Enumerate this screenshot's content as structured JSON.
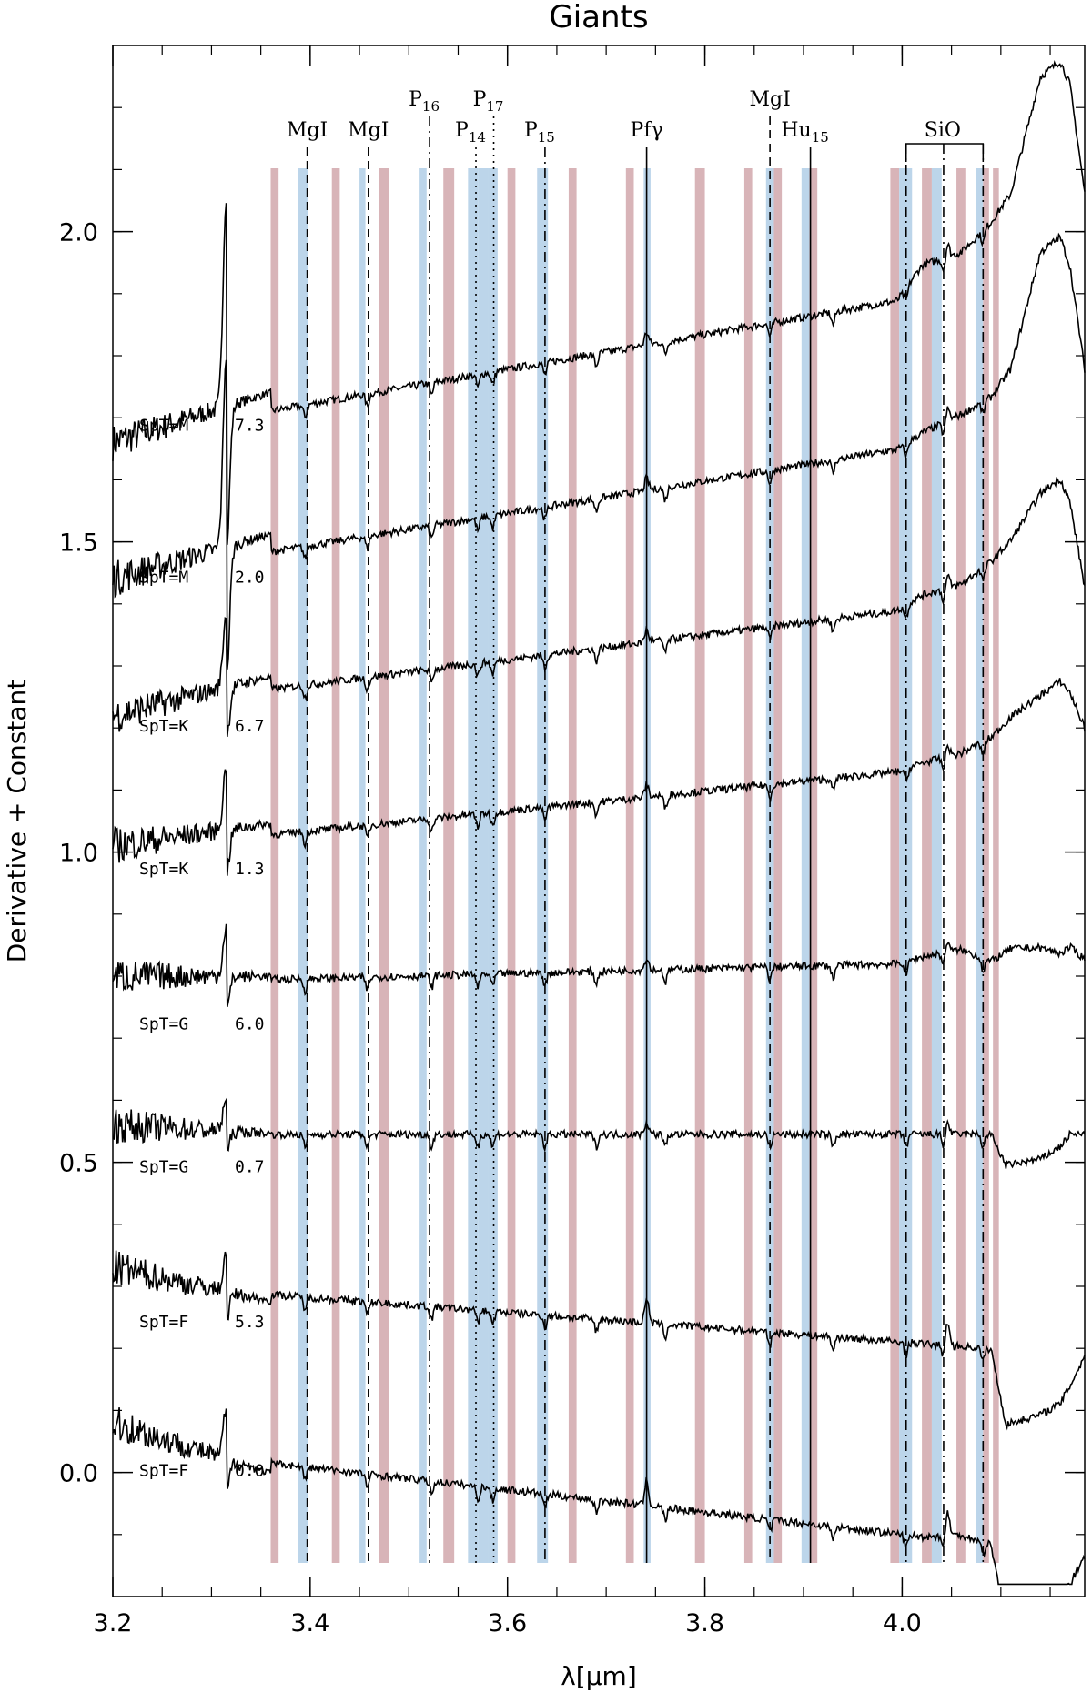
{
  "chart_data": {
    "type": "line",
    "title": "Giants",
    "xlabel": "λ[μm]",
    "ylabel": "Derivative + Constant",
    "xlim": [
      3.2,
      4.185
    ],
    "ylim": [
      -0.2,
      2.3
    ],
    "x_ticks": [
      3.2,
      3.4,
      3.6,
      3.8,
      4.0
    ],
    "x_tick_labels": [
      "3.2",
      "3.4",
      "3.6",
      "3.8",
      "4.0"
    ],
    "y_ticks": [
      0.0,
      0.5,
      1.0,
      1.5,
      2.0
    ],
    "y_tick_labels": [
      "0.0",
      "0.5",
      "1.0",
      "1.5",
      "2.0"
    ],
    "grid": false,
    "colors": {
      "red_band": "#d8b4b8",
      "blue_band": "#bcd5ea",
      "line": "#000000"
    },
    "series": [
      {
        "name": "SpT=M",
        "spt_value": "7.3",
        "offset": 1.75,
        "label_y": 1.685,
        "start": 1.66,
        "rise": 0.14,
        "pah": 0.34,
        "pah_pos": true,
        "end_bump": [
          [
            3.995,
            0.0
          ],
          [
            4.02,
            0.05
          ],
          [
            4.06,
            0.06
          ],
          [
            4.09,
            0.1
          ],
          [
            4.11,
            0.14
          ],
          [
            4.14,
            0.32
          ],
          [
            4.16,
            0.34
          ],
          [
            4.17,
            0.3
          ],
          [
            4.185,
            0.12
          ]
        ]
      },
      {
        "name": "SpT=M",
        "spt_value": "2.0",
        "offset": 1.52,
        "label_y": 1.44,
        "start": 1.44,
        "rise": 0.13,
        "pah": 0.31,
        "pah_pos": true,
        "end_bump": [
          [
            3.995,
            0.0
          ],
          [
            4.02,
            0.02
          ],
          [
            4.06,
            0.04
          ],
          [
            4.09,
            0.06
          ],
          [
            4.11,
            0.1
          ],
          [
            4.14,
            0.28
          ],
          [
            4.16,
            0.3
          ],
          [
            4.17,
            0.25
          ],
          [
            4.185,
            0.08
          ]
        ]
      },
      {
        "name": "SpT=K",
        "spt_value": "6.7",
        "offset": 1.29,
        "label_y": 1.2,
        "start": 1.22,
        "rise": 0.1,
        "pah": 0.12,
        "pah_pos": true,
        "end_bump": [
          [
            3.995,
            0.0
          ],
          [
            4.02,
            0.02
          ],
          [
            4.06,
            0.03
          ],
          [
            4.09,
            0.06
          ],
          [
            4.11,
            0.09
          ],
          [
            4.14,
            0.16
          ],
          [
            4.16,
            0.18
          ],
          [
            4.17,
            0.14
          ],
          [
            4.185,
            0.0
          ]
        ]
      },
      {
        "name": "SpT=K",
        "spt_value": "1.3",
        "offset": 1.05,
        "label_y": 0.97,
        "start": 1.01,
        "rise": 0.08,
        "pah": 0.1,
        "pah_pos": true,
        "end_bump": [
          [
            3.995,
            0.0
          ],
          [
            4.02,
            0.01
          ],
          [
            4.06,
            0.02
          ],
          [
            4.09,
            0.04
          ],
          [
            4.11,
            0.07
          ],
          [
            4.14,
            0.1
          ],
          [
            4.16,
            0.12
          ],
          [
            4.17,
            0.1
          ],
          [
            4.185,
            0.04
          ]
        ]
      },
      {
        "name": "SpT=G",
        "spt_value": "6.0",
        "offset": 0.8,
        "label_y": 0.72,
        "start": 0.8,
        "rise": 0.02,
        "pah": 0.08,
        "pah_pos": true,
        "end_bump": [
          [
            3.995,
            0.0
          ],
          [
            4.02,
            0.01
          ],
          [
            4.06,
            0.02
          ],
          [
            4.09,
            0.0
          ],
          [
            4.11,
            0.02
          ],
          [
            4.14,
            0.02
          ],
          [
            4.16,
            0.01
          ],
          [
            4.17,
            0.02
          ],
          [
            4.185,
            0.0
          ]
        ]
      },
      {
        "name": "SpT=G",
        "spt_value": "0.7",
        "offset": 0.545,
        "label_y": 0.49,
        "start": 0.56,
        "rise": 0.0,
        "pah": 0.09,
        "pah_pos": false,
        "end_bump": [
          [
            3.995,
            0.0
          ],
          [
            4.02,
            0.0
          ],
          [
            4.06,
            0.0
          ],
          [
            4.09,
            0.0
          ],
          [
            4.105,
            -0.05
          ],
          [
            4.14,
            -0.04
          ],
          [
            4.16,
            -0.02
          ],
          [
            4.17,
            0.0
          ],
          [
            4.185,
            0.0
          ]
        ]
      },
      {
        "name": "SpT=F",
        "spt_value": "5.3",
        "offset": 0.27,
        "label_y": 0.24,
        "start": 0.33,
        "rise": -0.06,
        "pah": 0.1,
        "pah_pos": false,
        "end_bump": [
          [
            3.995,
            0.0
          ],
          [
            4.02,
            0.0
          ],
          [
            4.06,
            0.0
          ],
          [
            4.09,
            0.0
          ],
          [
            4.105,
            -0.12
          ],
          [
            4.14,
            -0.1
          ],
          [
            4.16,
            -0.08
          ],
          [
            4.17,
            -0.05
          ],
          [
            4.185,
            0.0
          ]
        ]
      },
      {
        "name": "SpT=F",
        "spt_value": "0.0",
        "offset": -0.01,
        "label_y": 0.0,
        "start": 0.08,
        "rise": -0.09,
        "pah": 0.13,
        "pah_pos": false,
        "end_bump": [
          [
            3.995,
            0.0
          ],
          [
            4.02,
            0.0
          ],
          [
            4.06,
            0.01
          ],
          [
            4.09,
            0.0
          ],
          [
            4.105,
            -0.12
          ],
          [
            4.14,
            -0.12
          ],
          [
            4.16,
            -0.08
          ],
          [
            4.17,
            -0.05
          ],
          [
            4.185,
            0.0
          ]
        ]
      }
    ],
    "bands": [
      {
        "x0": 3.36,
        "x1": 3.368,
        "color": "red"
      },
      {
        "x0": 3.388,
        "x1": 3.398,
        "color": "blue"
      },
      {
        "x0": 3.422,
        "x1": 3.43,
        "color": "red"
      },
      {
        "x0": 3.45,
        "x1": 3.456,
        "color": "blue"
      },
      {
        "x0": 3.47,
        "x1": 3.48,
        "color": "red"
      },
      {
        "x0": 3.51,
        "x1": 3.518,
        "color": "blue"
      },
      {
        "x0": 3.535,
        "x1": 3.546,
        "color": "red"
      },
      {
        "x0": 3.56,
        "x1": 3.57,
        "color": "blue"
      },
      {
        "x0": 3.57,
        "x1": 3.58,
        "color": "blue"
      },
      {
        "x0": 3.58,
        "x1": 3.59,
        "color": "blue"
      },
      {
        "x0": 3.6,
        "x1": 3.608,
        "color": "red"
      },
      {
        "x0": 3.63,
        "x1": 3.641,
        "color": "blue"
      },
      {
        "x0": 3.662,
        "x1": 3.67,
        "color": "red"
      },
      {
        "x0": 3.72,
        "x1": 3.728,
        "color": "red"
      },
      {
        "x0": 3.738,
        "x1": 3.745,
        "color": "blue"
      },
      {
        "x0": 3.79,
        "x1": 3.8,
        "color": "red"
      },
      {
        "x0": 3.84,
        "x1": 3.848,
        "color": "red"
      },
      {
        "x0": 3.862,
        "x1": 3.87,
        "color": "blue"
      },
      {
        "x0": 3.87,
        "x1": 3.878,
        "color": "red"
      },
      {
        "x0": 3.898,
        "x1": 3.906,
        "color": "blue"
      },
      {
        "x0": 3.906,
        "x1": 3.914,
        "color": "red"
      },
      {
        "x0": 3.988,
        "x1": 3.997,
        "color": "red"
      },
      {
        "x0": 3.997,
        "x1": 4.01,
        "color": "blue"
      },
      {
        "x0": 4.02,
        "x1": 4.03,
        "color": "red"
      },
      {
        "x0": 4.03,
        "x1": 4.04,
        "color": "blue"
      },
      {
        "x0": 4.055,
        "x1": 4.064,
        "color": "red"
      },
      {
        "x0": 4.075,
        "x1": 4.082,
        "color": "blue"
      },
      {
        "x0": 4.082,
        "x1": 4.088,
        "color": "red"
      },
      {
        "x0": 4.092,
        "x1": 4.098,
        "color": "red"
      }
    ],
    "lines": [
      {
        "label": "MgI",
        "sub": "",
        "x": 3.397,
        "style": "dashed",
        "row": 2
      },
      {
        "label": "MgI",
        "sub": "",
        "x": 3.459,
        "style": "dashed",
        "row": 2
      },
      {
        "label": "P",
        "sub": "16",
        "x": 3.521,
        "style": "dashdot",
        "row": 1
      },
      {
        "label": "P",
        "sub": "14",
        "x": 3.568,
        "style": "dotted",
        "row": 2
      },
      {
        "label": "P",
        "sub": "17",
        "x": 3.586,
        "style": "dotted",
        "row": 1
      },
      {
        "label": "P",
        "sub": "15",
        "x": 3.638,
        "style": "dashdot",
        "row": 2
      },
      {
        "label": "Pfγ",
        "sub": "",
        "x": 3.741,
        "style": "solid",
        "row": 2
      },
      {
        "label": "MgI",
        "sub": "",
        "x": 3.866,
        "style": "dashed",
        "row": 1
      },
      {
        "label": "Hu",
        "sub": "15",
        "x": 3.907,
        "style": "solid",
        "row": 2
      },
      {
        "label": "SiO",
        "sub": "",
        "x": 4.041,
        "style": "bracket",
        "row": 2
      }
    ],
    "sio_lines": [
      4.004,
      4.042,
      4.082
    ],
    "emission": [
      3.741,
      4.046
    ],
    "absorption": [
      3.395,
      3.458,
      3.523,
      3.57,
      3.585,
      3.638,
      3.69,
      3.76,
      3.866,
      3.93,
      4.004,
      4.042,
      4.082
    ]
  }
}
